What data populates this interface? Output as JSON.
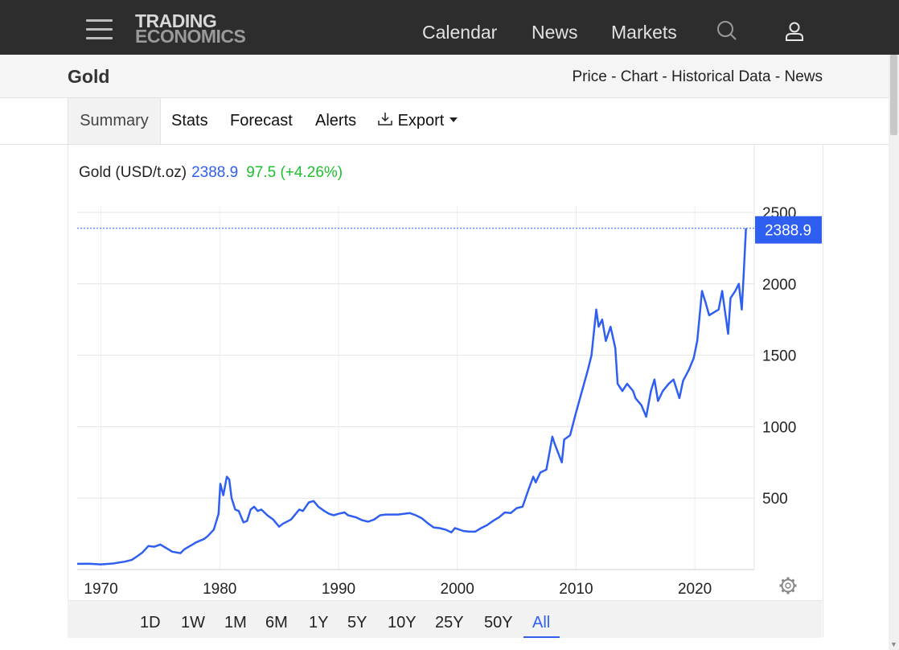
{
  "brand": {
    "line1": "TRADING",
    "line2": "ECONOMICS"
  },
  "topnav": {
    "calendar": "Calendar",
    "news": "News",
    "markets": "Markets",
    "search_icon": "search-icon",
    "user_icon": "user-icon"
  },
  "page": {
    "title": "Gold"
  },
  "subnav": {
    "price": "Price",
    "sep1": " - ",
    "chart": "Chart",
    "sep2": " - ",
    "historical": "Historical Data",
    "sep3": " - ",
    "news": "News"
  },
  "tabs": {
    "summary": "Summary",
    "stats": "Stats",
    "forecast": "Forecast",
    "alerts": "Alerts",
    "export": "Export"
  },
  "legend": {
    "name": "Gold (USD/t.oz)",
    "last": "2388.9",
    "change": "97.5 (+4.26%)"
  },
  "ranges": [
    "1D",
    "1W",
    "1M",
    "6M",
    "1Y",
    "5Y",
    "10Y",
    "25Y",
    "50Y",
    "All"
  ],
  "active_range": "All",
  "colors": {
    "line": "#2e5ff1",
    "up": "#1fbf2f",
    "header_bg": "#2d2d2d"
  },
  "chart_data": {
    "type": "line",
    "series": [
      {
        "name": "Gold (USD/t.oz)",
        "x": [
          1968.0,
          1969.0,
          1970.0,
          1971.0,
          1972.0,
          1972.6,
          1973.0,
          1973.5,
          1974.0,
          1974.5,
          1975.0,
          1975.7,
          1976.0,
          1976.7,
          1977.0,
          1978.0,
          1978.7,
          1979.0,
          1979.5,
          1979.9,
          1980.05,
          1980.3,
          1980.6,
          1980.8,
          1981.0,
          1981.3,
          1981.6,
          1982.0,
          1982.3,
          1982.6,
          1982.9,
          1983.2,
          1983.5,
          1984.0,
          1984.5,
          1985.0,
          1985.3,
          1986.0,
          1986.7,
          1987.0,
          1987.5,
          1987.9,
          1988.3,
          1988.8,
          1989.2,
          1989.6,
          1990.0,
          1990.5,
          1990.8,
          1991.5,
          1992.0,
          1992.5,
          1993.0,
          1993.5,
          1994.0,
          1995.0,
          1996.0,
          1996.5,
          1997.0,
          1997.5,
          1998.0,
          1998.5,
          1999.0,
          1999.5,
          1999.8,
          2000.0,
          2000.5,
          2001.0,
          2001.5,
          2002.0,
          2002.5,
          2003.0,
          2003.5,
          2004.0,
          2004.5,
          2005.0,
          2005.5,
          2006.0,
          2006.4,
          2006.6,
          2007.0,
          2007.5,
          2008.0,
          2008.2,
          2008.8,
          2009.0,
          2009.5,
          2010.0,
          2010.5,
          2011.0,
          2011.3,
          2011.7,
          2011.9,
          2012.2,
          2012.5,
          2012.9,
          2013.3,
          2013.5,
          2013.9,
          2014.3,
          2014.8,
          2015.0,
          2015.5,
          2015.9,
          2016.3,
          2016.6,
          2016.9,
          2017.3,
          2017.8,
          2018.2,
          2018.7,
          2019.0,
          2019.5,
          2019.9,
          2020.2,
          2020.6,
          2020.9,
          2021.2,
          2021.6,
          2022.0,
          2022.3,
          2022.8,
          2023.0,
          2023.4,
          2023.7,
          2023.95,
          2024.1,
          2024.3
        ],
        "y": [
          40,
          41,
          36,
          42,
          55,
          68,
          90,
          120,
          165,
          160,
          175,
          140,
          125,
          115,
          140,
          190,
          215,
          235,
          280,
          390,
          600,
          520,
          650,
          630,
          500,
          420,
          410,
          330,
          340,
          420,
          440,
          410,
          420,
          380,
          350,
          300,
          320,
          350,
          420,
          410,
          470,
          480,
          440,
          410,
          390,
          380,
          390,
          400,
          380,
          365,
          345,
          335,
          350,
          380,
          385,
          385,
          395,
          380,
          360,
          325,
          295,
          290,
          280,
          260,
          290,
          285,
          270,
          265,
          265,
          290,
          310,
          340,
          365,
          400,
          395,
          430,
          440,
          560,
          650,
          610,
          680,
          700,
          930,
          880,
          750,
          910,
          940,
          1100,
          1250,
          1400,
          1500,
          1820,
          1700,
          1750,
          1600,
          1700,
          1550,
          1300,
          1250,
          1300,
          1250,
          1200,
          1150,
          1070,
          1250,
          1330,
          1180,
          1250,
          1300,
          1330,
          1200,
          1320,
          1400,
          1480,
          1600,
          1950,
          1870,
          1780,
          1800,
          1820,
          1950,
          1650,
          1900,
          1950,
          2000,
          1820,
          2050,
          2388.9
        ]
      }
    ],
    "ylim": [
      0,
      2500
    ],
    "xlim": [
      1968,
      2025
    ],
    "yticks": [
      500,
      1000,
      1500,
      2000,
      2500
    ],
    "xticks": [
      1970,
      1980,
      1990,
      2000,
      2010,
      2020
    ],
    "last_value_label": "2388.9",
    "grid": true,
    "settings_icon": "gear-icon"
  }
}
